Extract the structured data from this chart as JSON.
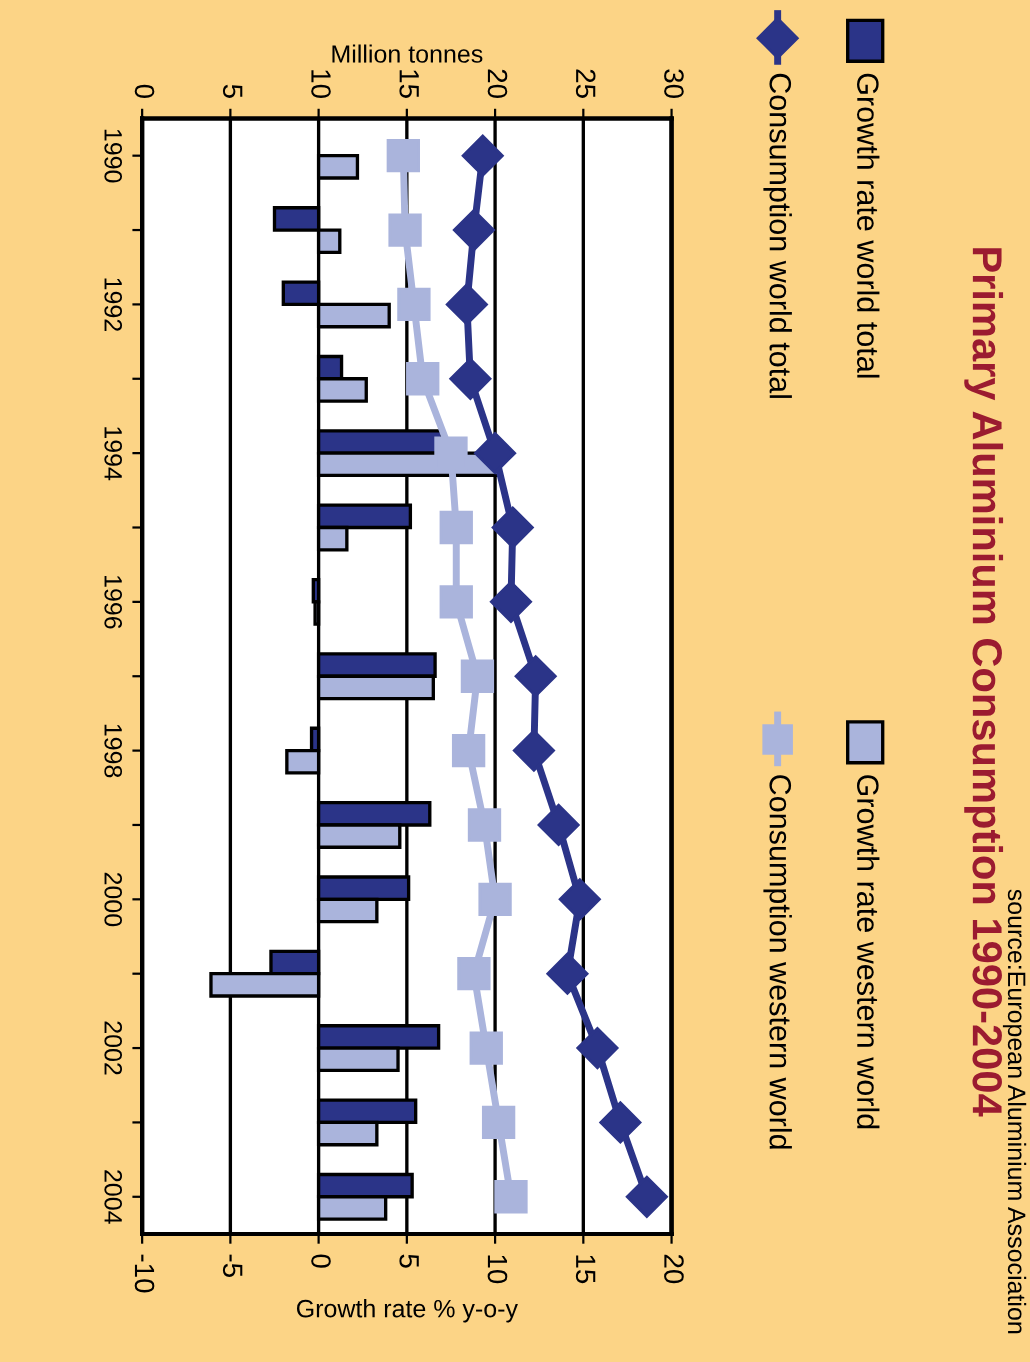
{
  "chart_data": {
    "type": "bar",
    "orientation": "horizontal",
    "title": "Primary Aluminium Consumption 1990-2004",
    "categories": [
      "1990",
      null,
      "1992",
      null,
      "1994",
      null,
      "1996",
      null,
      "1998",
      null,
      "2000",
      null,
      "2002",
      null,
      "2004"
    ],
    "series": [
      {
        "name": "Growth rate world total",
        "color": "#2b3488",
        "values": [
          null,
          -2.5,
          -2.0,
          1.3,
          7.0,
          5.2,
          -0.3,
          6.6,
          -0.4,
          6.3,
          5.1,
          -2.7,
          6.8,
          5.5,
          5.3
        ]
      },
      {
        "name": "Growth rate western world",
        "color": "#aab4dc",
        "values": [
          2.2,
          1.2,
          4.0,
          2.7,
          10.2,
          1.6,
          -0.2,
          6.5,
          -1.8,
          4.6,
          3.3,
          -6.1,
          4.5,
          3.3,
          3.8
        ]
      },
      {
        "name": "Consumption world total",
        "type": "line",
        "axis": "x2",
        "marker": "diamond",
        "color": "#2b3488",
        "values": [
          19.3,
          18.8,
          18.4,
          18.6,
          20.0,
          21.0,
          20.9,
          22.3,
          22.2,
          23.6,
          24.8,
          24.1,
          25.8,
          27.1,
          28.6
        ]
      },
      {
        "name": "Consumption western world",
        "type": "line",
        "axis": "x2",
        "marker": "square",
        "color": "#aab4dc",
        "values": [
          14.8,
          14.9,
          15.4,
          15.9,
          17.5,
          17.8,
          17.8,
          19.0,
          18.5,
          19.4,
          20.0,
          18.8,
          19.5,
          20.2,
          20.9
        ]
      }
    ],
    "xlabel": "Growth rate % y-o-y",
    "xlim": [
      -10,
      20
    ],
    "xticks": [
      -10,
      -5,
      0,
      5,
      10,
      15,
      20
    ],
    "x2label": "Million tonnes",
    "x2lim": [
      0,
      30
    ],
    "x2ticks": [
      0,
      5,
      10,
      15,
      20,
      25,
      30
    ],
    "grid": "x",
    "legend": "right",
    "annotations": [
      "source:European Aluminium Association"
    ]
  }
}
